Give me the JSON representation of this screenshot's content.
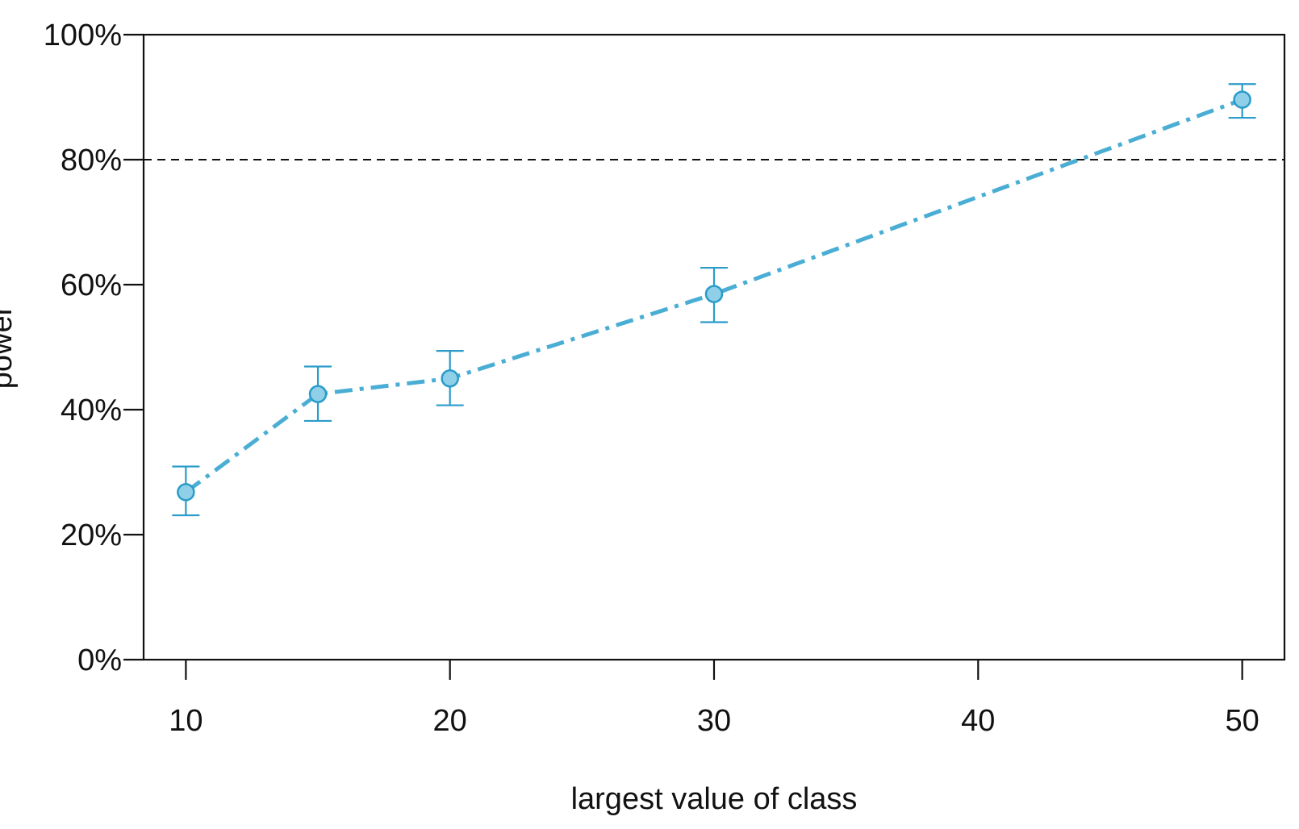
{
  "chart_data": {
    "type": "line",
    "title": "",
    "xlabel": "largest value of class",
    "ylabel": "power",
    "xlim": [
      8.4,
      51.6
    ],
    "ylim": [
      0,
      100
    ],
    "x_ticks": [
      10,
      20,
      30,
      40,
      50
    ],
    "x_tick_labels": [
      "10",
      "20",
      "30",
      "40",
      "50"
    ],
    "y_ticks": [
      0,
      20,
      40,
      60,
      80,
      100
    ],
    "y_tick_labels": [
      "0%",
      "20%",
      "40%",
      "60%",
      "80%",
      "100%"
    ],
    "reference_line": {
      "y": 80,
      "style": "dashed",
      "color": "#111111"
    },
    "grid": false,
    "series": [
      {
        "x": [
          10,
          15,
          20,
          30,
          50
        ],
        "y": [
          26.8,
          42.5,
          45.0,
          58.5,
          89.6
        ],
        "y_lower": [
          23.1,
          38.2,
          40.7,
          54.0,
          86.7
        ],
        "y_upper": [
          30.9,
          46.9,
          49.4,
          62.7,
          92.1
        ],
        "line_style": "dash-dot",
        "line_color": "#4aaed4",
        "marker_fill": "#8fd0e8",
        "marker_stroke": "#2a9cc9",
        "errorbar_color": "#2a9cc9"
      }
    ]
  }
}
